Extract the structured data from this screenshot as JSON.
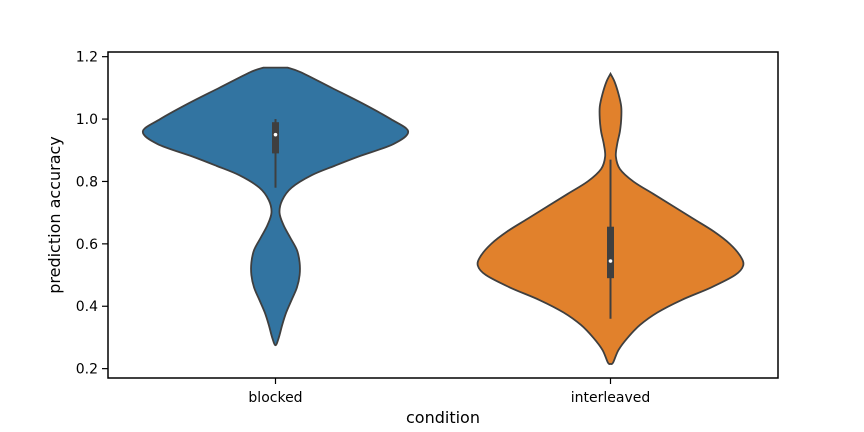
{
  "chart_data": {
    "type": "violin",
    "title": "",
    "xlabel": "condition",
    "ylabel": "prediction accuracy",
    "categories": [
      "blocked",
      "interleaved"
    ],
    "ylim": [
      0.17,
      1.215
    ],
    "yticks": [
      0.2,
      0.4,
      0.6,
      0.8,
      1.0,
      1.2
    ],
    "ytick_labels": [
      "0.2",
      "0.4",
      "0.6",
      "0.8",
      "1.0",
      "1.2"
    ],
    "grid": false,
    "legend": "none",
    "series": [
      {
        "category": "blocked",
        "color": "#3274a1",
        "min": 0.78,
        "q1": 0.89,
        "median": 0.95,
        "q3": 0.99,
        "max": 1.0,
        "density": [
          [
            1.165,
            0.09
          ],
          [
            1.15,
            0.19
          ],
          [
            1.1,
            0.42
          ],
          [
            1.05,
            0.65
          ],
          [
            1.0,
            0.86
          ],
          [
            0.96,
            0.99
          ],
          [
            0.92,
            0.88
          ],
          [
            0.88,
            0.62
          ],
          [
            0.85,
            0.44
          ],
          [
            0.82,
            0.27
          ],
          [
            0.78,
            0.12
          ],
          [
            0.74,
            0.05
          ],
          [
            0.7,
            0.03
          ],
          [
            0.66,
            0.06
          ],
          [
            0.62,
            0.11
          ],
          [
            0.58,
            0.16
          ],
          [
            0.54,
            0.18
          ],
          [
            0.5,
            0.18
          ],
          [
            0.46,
            0.16
          ],
          [
            0.42,
            0.12
          ],
          [
            0.38,
            0.08
          ],
          [
            0.34,
            0.05
          ],
          [
            0.3,
            0.025
          ],
          [
            0.275,
            0.0
          ]
        ]
      },
      {
        "category": "interleaved",
        "color": "#e1812c",
        "min": 0.36,
        "q1": 0.49,
        "median": 0.545,
        "q3": 0.655,
        "max": 0.87,
        "density": [
          [
            1.145,
            0.0
          ],
          [
            1.12,
            0.03
          ],
          [
            1.08,
            0.06
          ],
          [
            1.04,
            0.08
          ],
          [
            1.0,
            0.08
          ],
          [
            0.96,
            0.07
          ],
          [
            0.92,
            0.05
          ],
          [
            0.88,
            0.04
          ],
          [
            0.84,
            0.07
          ],
          [
            0.8,
            0.17
          ],
          [
            0.76,
            0.32
          ],
          [
            0.72,
            0.47
          ],
          [
            0.68,
            0.62
          ],
          [
            0.64,
            0.77
          ],
          [
            0.6,
            0.89
          ],
          [
            0.56,
            0.97
          ],
          [
            0.53,
            0.99
          ],
          [
            0.5,
            0.93
          ],
          [
            0.46,
            0.75
          ],
          [
            0.42,
            0.53
          ],
          [
            0.38,
            0.35
          ],
          [
            0.34,
            0.22
          ],
          [
            0.3,
            0.13
          ],
          [
            0.26,
            0.06
          ],
          [
            0.22,
            0.02
          ],
          [
            0.215,
            0.0
          ]
        ]
      }
    ]
  }
}
